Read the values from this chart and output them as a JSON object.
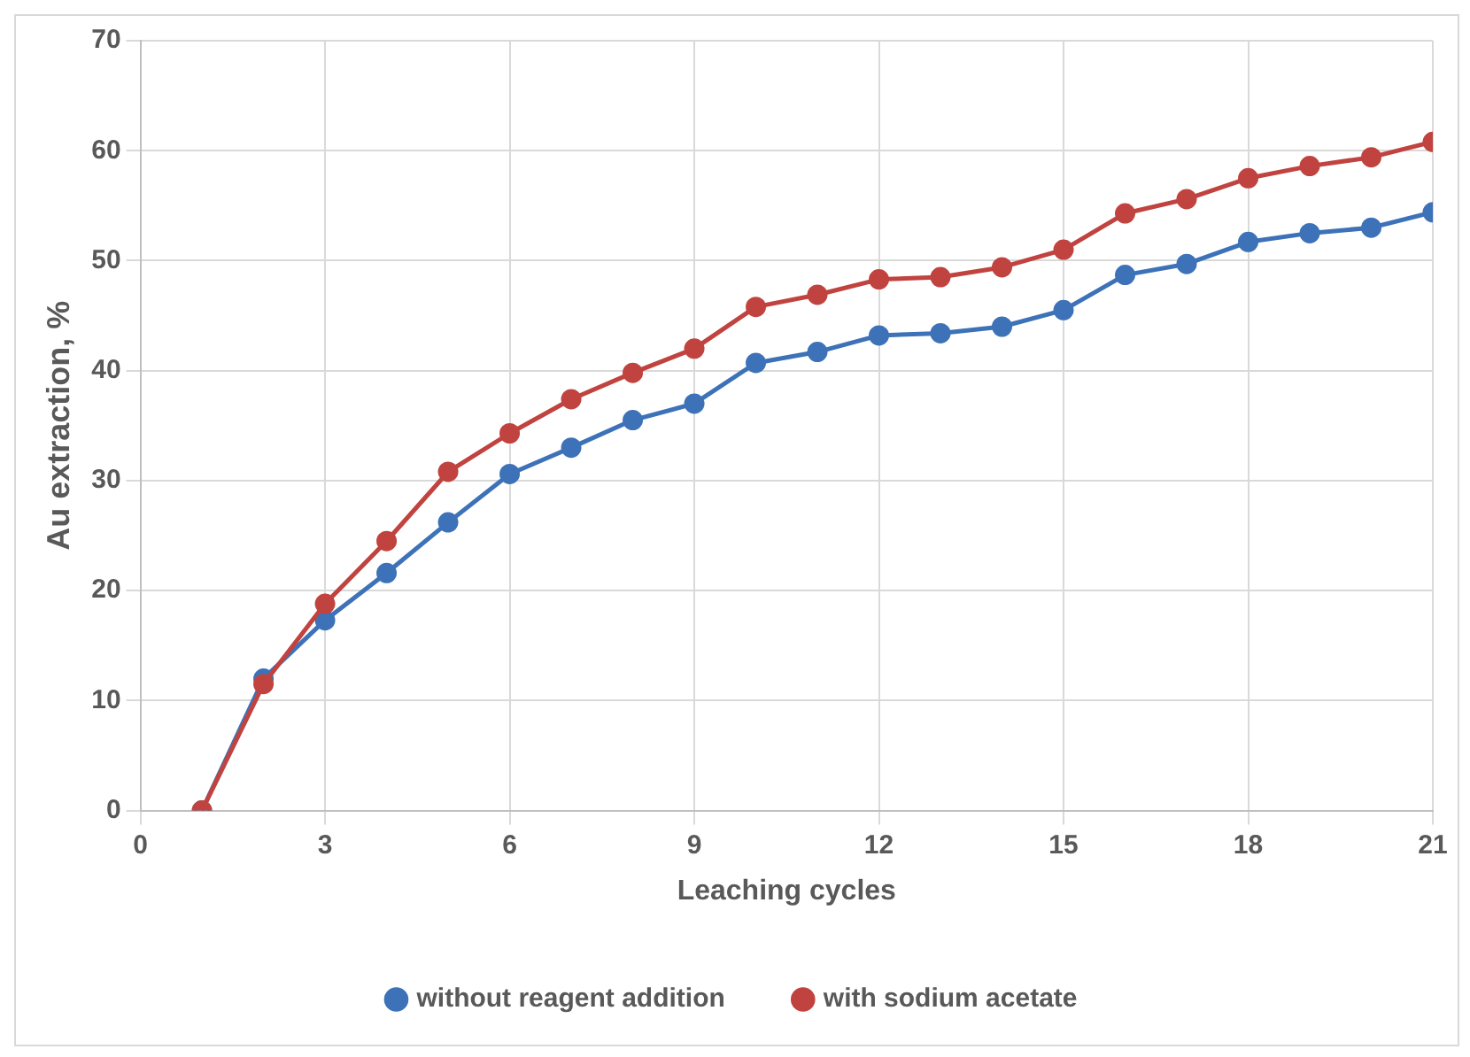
{
  "chart_data": {
    "type": "line",
    "xlabel": "Leaching cycles",
    "ylabel": "Au extraction, %",
    "x": [
      1,
      2,
      3,
      4,
      5,
      6,
      7,
      8,
      9,
      10,
      11,
      12,
      13,
      14,
      15,
      16,
      17,
      18,
      19,
      20,
      21
    ],
    "xlim": [
      0,
      21
    ],
    "xticks": [
      0,
      3,
      6,
      9,
      12,
      15,
      18,
      21
    ],
    "ylim": [
      0,
      70
    ],
    "yticks": [
      0,
      10,
      20,
      30,
      40,
      50,
      60,
      70
    ],
    "grid": true,
    "legend": "bottom",
    "marker": "circle",
    "line_style": "solid",
    "series": [
      {
        "name": "without reagent addition",
        "color": "#3d72b8",
        "values": [
          0,
          12.0,
          17.3,
          21.6,
          26.2,
          30.6,
          33.0,
          35.5,
          37.0,
          40.7,
          41.7,
          43.2,
          43.4,
          44.0,
          45.5,
          48.7,
          49.7,
          51.7,
          52.5,
          53.0,
          54.4
        ]
      },
      {
        "name": "with sodium acetate",
        "color": "#c0433f",
        "values": [
          0,
          11.5,
          18.8,
          24.5,
          30.8,
          34.3,
          37.4,
          39.8,
          42.0,
          45.8,
          46.9,
          48.3,
          48.5,
          49.4,
          51.0,
          54.3,
          55.6,
          57.5,
          58.6,
          59.4,
          60.8
        ]
      }
    ]
  }
}
